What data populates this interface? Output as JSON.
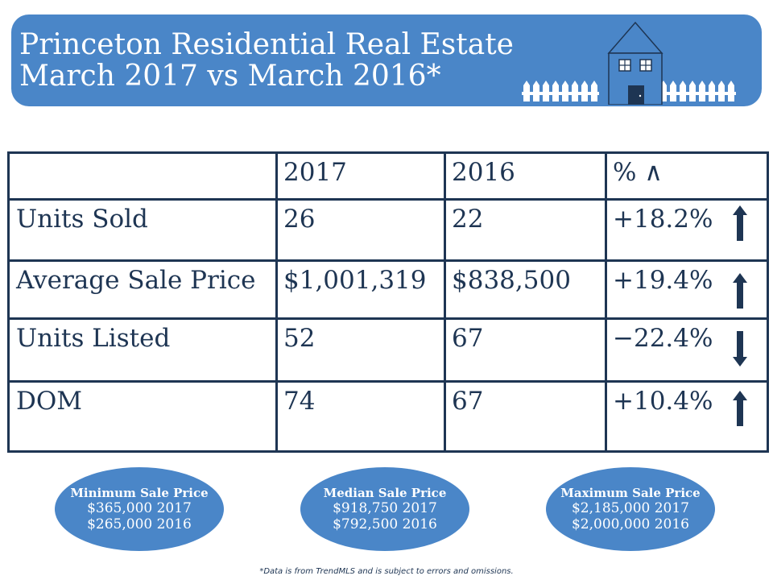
{
  "banner": {
    "title_line1": "Princeton Residential Real Estate",
    "title_line2": "March 2017 vs March 2016*"
  },
  "table": {
    "header": [
      "",
      "2017",
      "2016",
      "% ∧"
    ],
    "rows": [
      {
        "label": "Units Sold",
        "v2017": "26",
        "v2016": "22",
        "change": "+18.2%",
        "direction": "up"
      },
      {
        "label": "Average Sale Price",
        "v2017": "$1,001,319",
        "v2016": "$838,500",
        "change": "+19.4%",
        "direction": "up"
      },
      {
        "label": "Units Listed",
        "v2017": "52",
        "v2016": "67",
        "change": "−22.4%",
        "direction": "down"
      },
      {
        "label": "DOM",
        "v2017": "74",
        "v2016": "67",
        "change": "+10.4%",
        "direction": "up"
      }
    ]
  },
  "ovals": [
    {
      "title": "Minimum Sale Price",
      "line1": "$365,000 2017",
      "line2": "$265,000 2016"
    },
    {
      "title": "Median Sale Price",
      "line1": "$918,750 2017",
      "line2": "$792,500 2016"
    },
    {
      "title": "Maximum Sale Price",
      "line1": "$2,185,000 2017",
      "line2": "$2,000,000 2016"
    }
  ],
  "footnote": "*Data is from TrendMLS and is subject to errors and omissions.",
  "colors": {
    "accent": "#4a86c8",
    "navy": "#1e3553",
    "house_door": "#1e3553"
  },
  "icons": {
    "house": "house-icon",
    "fence": "picket-fence-icon",
    "up": "arrow-up-icon",
    "down": "arrow-down-icon"
  }
}
